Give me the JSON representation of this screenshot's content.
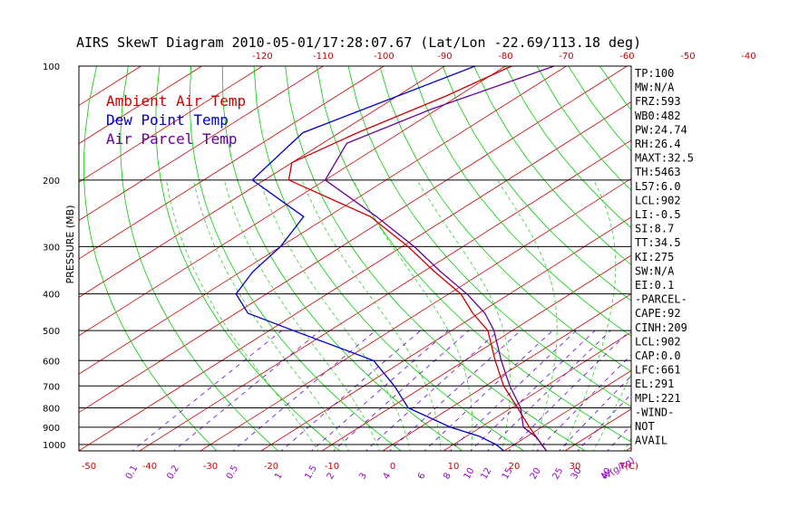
{
  "title": "AIRS SkewT Diagram 2010-05-01/17:28:07.67 (Lat/Lon -22.69/113.18 deg)",
  "colors": {
    "axes": "#000000",
    "isotherm": "#cc0000",
    "dry_adiabat": "#00cc00",
    "moist_adiabat": "#33cc33",
    "mixing_ratio": "#6600cc",
    "ambient_temp": "#cc0000",
    "dew_point": "#0000cc",
    "parcel": "#660099"
  },
  "legend": [
    {
      "label": "Ambient Air Temp",
      "color": "#cc0000"
    },
    {
      "label": "Dew Point Temp",
      "color": "#0000cc"
    },
    {
      "label": "Air Parcel Temp",
      "color": "#660099"
    }
  ],
  "indices": [
    "TP:100",
    "MW:N/A",
    "FRZ:593",
    "WB0:482",
    "PW:24.74",
    "RH:26.4",
    "MAXT:32.5",
    "TH:5463",
    "L57:6.0",
    "LCL:902",
    "LI:-0.5",
    "SI:8.7",
    "TT:34.5",
    "KI:275",
    "SW:N/A",
    "EI:0.1",
    "-PARCEL-",
    "CAPE:92",
    "CINH:209",
    "LCL:902",
    "CAP:0.0",
    "LFC:661",
    "EL:291",
    "MPL:221",
    "-WIND-",
    "NOT",
    "AVAIL"
  ],
  "chart_data": {
    "type": "line",
    "title": "AIRS SkewT Diagram 2010-05-01/17:28:07.67 (Lat/Lon -22.69/113.18 deg)",
    "ylabel": "PRESSURE (MB)",
    "xlabel_bottom": "T(C)",
    "mixing_ratio_unit": "W(g/kg)",
    "pressure_ticks": [
      100,
      200,
      300,
      400,
      500,
      600,
      700,
      800,
      900,
      1000
    ],
    "temp_ticks_top": [
      -120,
      -110,
      -100,
      -90,
      -80,
      -70,
      -60,
      -50,
      -40
    ],
    "temp_ticks_bottom": [
      -50,
      -40,
      -30,
      -20,
      -10,
      0,
      10,
      20,
      30
    ],
    "mixing_ratio_labels": [
      "0.1",
      "0.2",
      "0.5",
      "1",
      "1.5",
      "2",
      "3",
      "4",
      "6",
      "8",
      "10",
      "12",
      "15",
      "20",
      "25",
      "30",
      "40"
    ],
    "ylim": [
      1050,
      100
    ],
    "grid": true,
    "legend_position": "top-left",
    "series": [
      {
        "name": "Ambient Air Temp",
        "points": [
          [
            100,
            -79
          ],
          [
            120,
            -82
          ],
          [
            150,
            -87
          ],
          [
            180,
            -90
          ],
          [
            200,
            -86
          ],
          [
            250,
            -63
          ],
          [
            300,
            -49
          ],
          [
            350,
            -38
          ],
          [
            400,
            -28
          ],
          [
            450,
            -21
          ],
          [
            500,
            -14
          ],
          [
            600,
            -5
          ],
          [
            700,
            3
          ],
          [
            800,
            11
          ],
          [
            900,
            18
          ],
          [
            1000,
            24.5
          ],
          [
            1040,
            27
          ]
        ]
      },
      {
        "name": "Dew Point Temp",
        "points": [
          [
            100,
            -85
          ],
          [
            150,
            -96
          ],
          [
            200,
            -92
          ],
          [
            250,
            -74
          ],
          [
            300,
            -70
          ],
          [
            350,
            -68
          ],
          [
            400,
            -65
          ],
          [
            450,
            -58
          ],
          [
            500,
            -46
          ],
          [
            600,
            -25
          ],
          [
            700,
            -15
          ],
          [
            800,
            -7
          ],
          [
            900,
            5
          ],
          [
            950,
            12
          ],
          [
            1000,
            17
          ],
          [
            1040,
            20
          ]
        ]
      },
      {
        "name": "Air Parcel Temp",
        "points": [
          [
            100,
            -72
          ],
          [
            130,
            -81
          ],
          [
            160,
            -86
          ],
          [
            200,
            -80
          ],
          [
            250,
            -62
          ],
          [
            300,
            -48
          ],
          [
            350,
            -37
          ],
          [
            400,
            -27
          ],
          [
            450,
            -19
          ],
          [
            500,
            -13
          ],
          [
            600,
            -4
          ],
          [
            700,
            4
          ],
          [
            800,
            11.5
          ],
          [
            900,
            17
          ],
          [
            960,
            22
          ],
          [
            1040,
            27
          ]
        ]
      }
    ]
  }
}
